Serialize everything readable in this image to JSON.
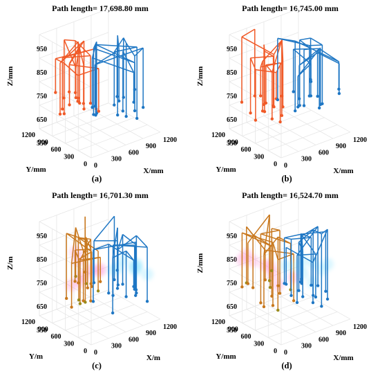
{
  "figure": {
    "panels": [
      {
        "id": "a",
        "label": "(a)",
        "title": "Path length= 17,698.80 mm",
        "zlabel": "Z/mm",
        "ylabel": "Y/mm",
        "xlabel": "X/mm",
        "style": "plain"
      },
      {
        "id": "b",
        "label": "(b)",
        "title": "Path length= 16,745.00 mm",
        "zlabel": "Z/mm",
        "ylabel": "Y/mm",
        "xlabel": "X/mm",
        "style": "plain"
      },
      {
        "id": "c",
        "label": "(c)",
        "title": "Path length= 16,701.30 mm",
        "zlabel": "Z/m",
        "ylabel": "Y/m",
        "xlabel": "X/m",
        "style": "glow"
      },
      {
        "id": "d",
        "label": "(d)",
        "title": "Path length= 16,524.70 mm",
        "zlabel": "Z/mm",
        "ylabel": "Y/mm",
        "xlabel": "X/mm",
        "style": "glow"
      }
    ]
  },
  "chart_data": [
    {
      "type": "line3d",
      "title": "Path length= 17,698.80 mm",
      "panel_label": "(a)",
      "xlabel": "X/mm",
      "ylabel": "Y/mm",
      "zlabel": "Z/mm",
      "x_ticks": [
        "0",
        "300",
        "600",
        "900",
        "1200"
      ],
      "y_ticks": [
        "0",
        "300",
        "600",
        "900",
        "1200"
      ],
      "z_ticks": [
        "550",
        "650",
        "750",
        "850",
        "950"
      ],
      "xlim": [
        0,
        1200
      ],
      "ylim": [
        0,
        1200
      ],
      "zlim": [
        550,
        950
      ],
      "grid": true,
      "series_colors": [
        "#f05a28",
        "#1f77c4"
      ],
      "path_length_mm": 17698.8
    },
    {
      "type": "line3d",
      "title": "Path length= 16,745.00 mm",
      "panel_label": "(b)",
      "xlabel": "X/mm",
      "ylabel": "Y/mm",
      "zlabel": "Z/mm",
      "x_ticks": [
        "0",
        "300",
        "600",
        "900",
        "1200"
      ],
      "y_ticks": [
        "0",
        "300",
        "600",
        "900",
        "1200"
      ],
      "z_ticks": [
        "550",
        "650",
        "750",
        "850",
        "950"
      ],
      "xlim": [
        0,
        1200
      ],
      "ylim": [
        0,
        1200
      ],
      "zlim": [
        550,
        950
      ],
      "grid": true,
      "series_colors": [
        "#f05a28",
        "#1f77c4"
      ],
      "path_length_mm": 16745.0
    },
    {
      "type": "line3d",
      "title": "Path length= 16,701.30 mm",
      "panel_label": "(c)",
      "xlabel": "X/m",
      "ylabel": "Y/m",
      "zlabel": "Z/m",
      "x_ticks": [
        "0",
        "300",
        "600",
        "900",
        "1200"
      ],
      "y_ticks": [
        "0",
        "300",
        "600",
        "900",
        "1200"
      ],
      "z_ticks": [
        "550",
        "650",
        "750",
        "850",
        "950"
      ],
      "xlim": [
        0,
        1200
      ],
      "ylim": [
        0,
        1200
      ],
      "zlim": [
        550,
        950
      ],
      "grid": true,
      "series_colors": [
        "#c8781e",
        "#1f77c4"
      ],
      "path_length_mm": 16701.3
    },
    {
      "type": "line3d",
      "title": "Path length= 16,524.70 mm",
      "panel_label": "(d)",
      "xlabel": "X/mm",
      "ylabel": "Y/mm",
      "zlabel": "Z/mm",
      "x_ticks": [
        "0",
        "300",
        "600",
        "900",
        "1200"
      ],
      "y_ticks": [
        "0",
        "300",
        "600",
        "900",
        "1200"
      ],
      "z_ticks": [
        "550",
        "650",
        "750",
        "850",
        "950"
      ],
      "xlim": [
        0,
        1200
      ],
      "ylim": [
        0,
        1200
      ],
      "zlim": [
        550,
        950
      ],
      "grid": true,
      "series_colors": [
        "#c8781e",
        "#1f77c4"
      ],
      "path_length_mm": 16524.7
    }
  ]
}
